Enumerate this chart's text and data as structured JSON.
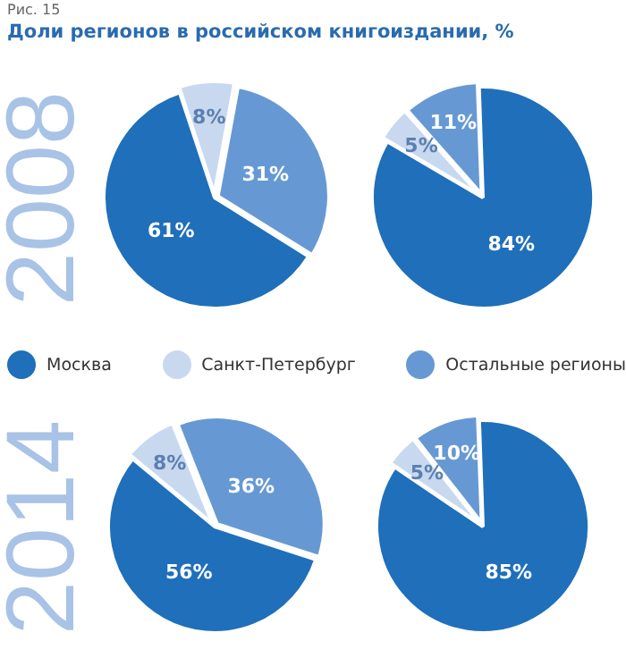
{
  "chart_data": [
    {
      "type": "pie",
      "title": "Доли регионов в российском книгоиздании, %",
      "subtitle": "2008",
      "annotations": [
        "Рис. 15"
      ],
      "categories": [
        "Москва",
        "Санкт-Петербург",
        "Остальные регионы"
      ],
      "values": [
        61,
        8,
        31
      ],
      "value_labels": [
        "61%",
        "8%",
        "31%"
      ],
      "colors": [
        "#1f6fba",
        "#c8d9ef",
        "#6699d3"
      ],
      "legend": "bottom"
    },
    {
      "type": "pie",
      "values": [
        84,
        5,
        11
      ],
      "value_labels": [
        "84%",
        "5%",
        "11%"
      ],
      "colors": [
        "#1f6fba",
        "#c8d9ef",
        "#6699d3"
      ]
    },
    {
      "type": "pie",
      "subtitle": "2014",
      "values": [
        56,
        8,
        36
      ],
      "value_labels": [
        "56%",
        "8%",
        "36%"
      ],
      "colors": [
        "#1f6fba",
        "#c8d9ef",
        "#6699d3"
      ]
    },
    {
      "type": "pie",
      "values": [
        85,
        5,
        10
      ],
      "value_labels": [
        "85%",
        "5%",
        "10%"
      ],
      "colors": [
        "#1f6fba",
        "#c8d9ef",
        "#6699d3"
      ]
    }
  ]
}
